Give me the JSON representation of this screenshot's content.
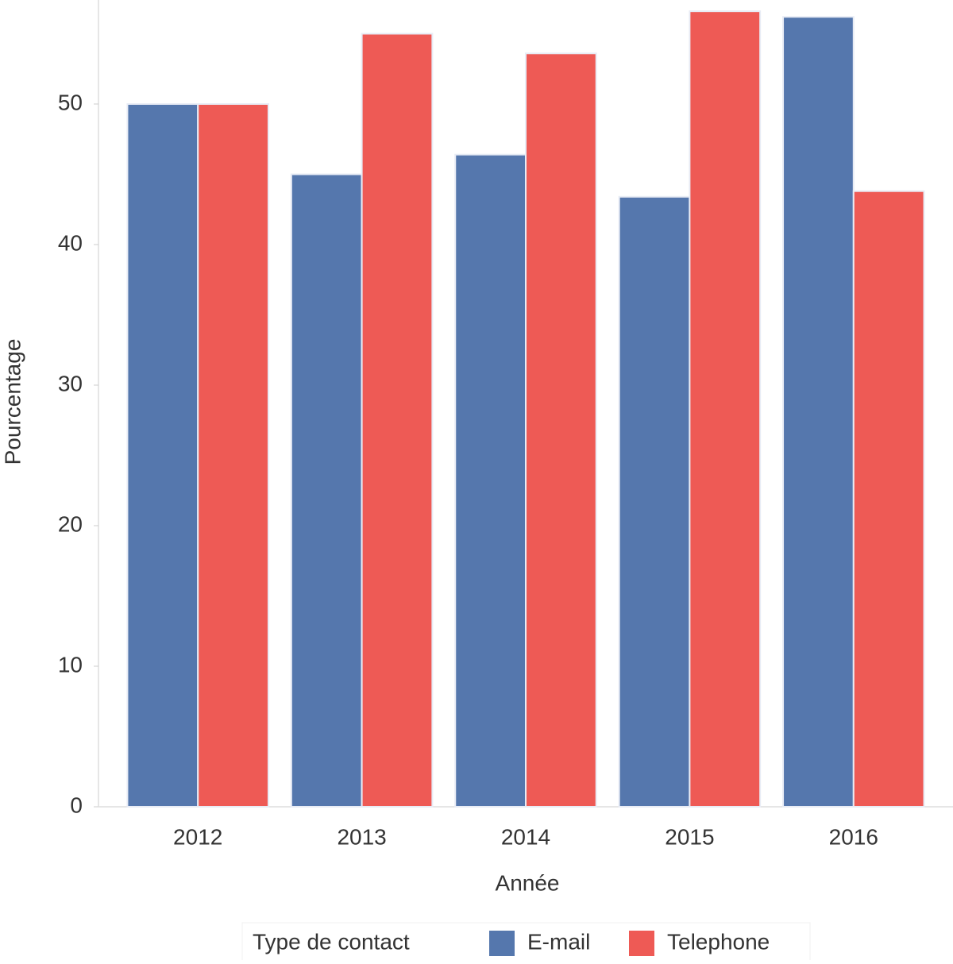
{
  "chart_data": {
    "type": "bar",
    "x_label": "Année",
    "y_label": "Pourcentage",
    "categories": [
      "2012",
      "2013",
      "2014",
      "2015",
      "2016"
    ],
    "series": [
      {
        "name": "E-mail",
        "color": "#5577ad",
        "values": [
          50,
          45,
          46.4,
          43.4,
          56.2
        ]
      },
      {
        "name": "Telephone",
        "color": "#ee5a55",
        "values": [
          50,
          55,
          53.6,
          56.6,
          43.8
        ]
      }
    ],
    "legend_title": "Type de contact",
    "legend_position": "bottom",
    "ylim": [
      0,
      57.4
    ],
    "yticks": [
      0,
      10,
      20,
      30,
      40,
      50
    ],
    "grid": false
  }
}
